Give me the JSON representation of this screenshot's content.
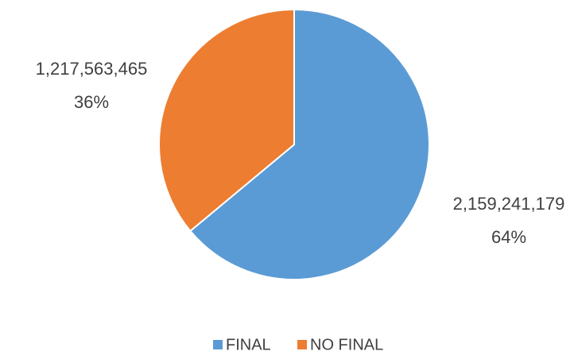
{
  "chart_data": {
    "type": "pie",
    "categories": [
      "FINAL",
      "NO FINAL"
    ],
    "values": [
      2159241179,
      1217563465
    ],
    "value_labels": [
      "2,159,241,179",
      "1,217,563,465"
    ],
    "percents": [
      64,
      36
    ],
    "percent_labels": [
      "64%",
      "36%"
    ],
    "colors": [
      "#5b9bd5",
      "#ed7d31"
    ],
    "legend": "bottom"
  }
}
